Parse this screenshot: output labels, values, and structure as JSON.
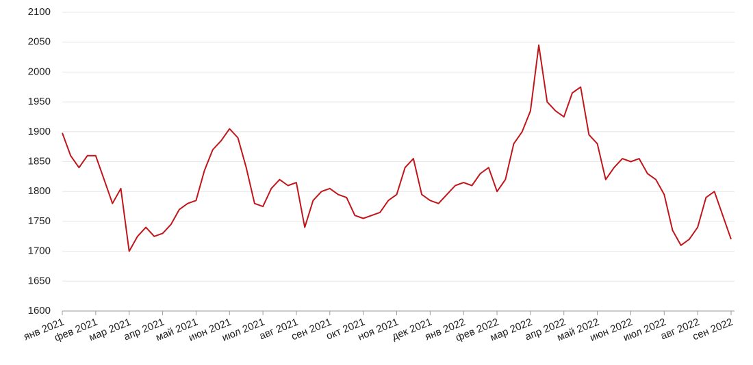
{
  "chart_data": {
    "type": "line",
    "categories": [
      "янв 2021",
      null,
      null,
      null,
      "фев 2021",
      null,
      null,
      null,
      "мар 2021",
      null,
      null,
      null,
      "апр 2021",
      null,
      null,
      null,
      "май 2021",
      null,
      null,
      null,
      "июн 2021",
      null,
      null,
      null,
      "июл 2021",
      null,
      null,
      null,
      "авг 2021",
      null,
      null,
      null,
      "сен 2021",
      null,
      null,
      null,
      "окт 2021",
      null,
      null,
      null,
      "ноя 2021",
      null,
      null,
      null,
      "дек 2021",
      null,
      null,
      null,
      "янв 2022",
      null,
      null,
      null,
      "фев 2022",
      null,
      null,
      null,
      "мар 2022",
      null,
      null,
      null,
      "апр 2022",
      null,
      null,
      null,
      "май 2022",
      null,
      null,
      null,
      "июн 2022",
      null,
      null,
      null,
      "июл 2022",
      null,
      null,
      null,
      "авг 2022",
      null,
      null,
      null,
      "сен 2022"
    ],
    "series": [
      {
        "color": "#c0161b",
        "values": [
          1898,
          1860,
          1840,
          1860,
          1860,
          1820,
          1780,
          1805,
          1700,
          1725,
          1740,
          1725,
          1730,
          1745,
          1770,
          1780,
          1785,
          1835,
          1870,
          1885,
          1905,
          1890,
          1840,
          1780,
          1775,
          1805,
          1820,
          1810,
          1815,
          1740,
          1785,
          1800,
          1805,
          1795,
          1790,
          1760,
          1755,
          1760,
          1765,
          1785,
          1795,
          1840,
          1855,
          1795,
          1785,
          1780,
          1795,
          1810,
          1815,
          1810,
          1830,
          1840,
          1800,
          1820,
          1880,
          1900,
          1935,
          2045,
          1950,
          1935,
          1925,
          1965,
          1975,
          1895,
          1880,
          1820,
          1840,
          1855,
          1850,
          1855,
          1830,
          1820,
          1795,
          1735,
          1710,
          1720,
          1740,
          1790,
          1800,
          1760,
          1720
        ]
      }
    ],
    "ylim": [
      1600,
      2100
    ],
    "yticks": [
      1600,
      1650,
      1700,
      1750,
      1800,
      1850,
      1900,
      1950,
      2000,
      2050,
      2100
    ],
    "grid": true
  }
}
